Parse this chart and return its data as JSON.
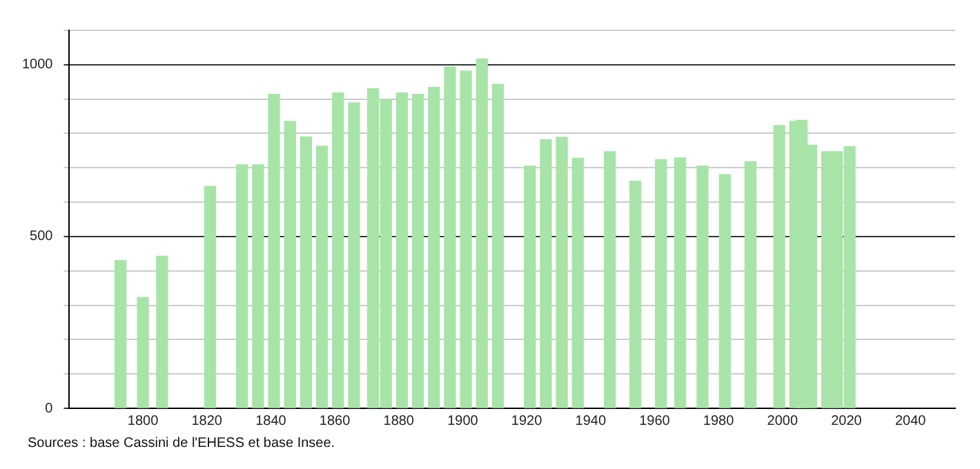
{
  "chart_data": {
    "type": "bar",
    "x": [
      1793,
      1800,
      1806,
      1821,
      1831,
      1836,
      1841,
      1846,
      1851,
      1856,
      1861,
      1866,
      1872,
      1876,
      1881,
      1886,
      1891,
      1896,
      1901,
      1906,
      1911,
      1921,
      1926,
      1931,
      1936,
      1946,
      1954,
      1962,
      1968,
      1975,
      1982,
      1990,
      1999,
      2004,
      2006,
      2009,
      2014,
      2017,
      2021
    ],
    "values": [
      430,
      323,
      443,
      646,
      709,
      709,
      914,
      835,
      790,
      763,
      918,
      889,
      930,
      898,
      918,
      914,
      934,
      994,
      982,
      1017,
      943,
      705,
      782,
      789,
      728,
      747,
      661,
      724,
      729,
      705,
      680,
      718,
      823,
      835,
      838,
      766,
      747,
      747,
      762
    ],
    "color": "#a8e4a8",
    "xlim": [
      1777,
      2054
    ],
    "xticks": [
      1800,
      1820,
      1840,
      1860,
      1880,
      1900,
      1920,
      1940,
      1960,
      1980,
      2000,
      2020,
      2040
    ],
    "ylim": [
      0,
      1100
    ],
    "yticks": [
      0,
      {
        "value": 100,
        "label": null
      },
      {
        "value": 200,
        "label": null
      },
      {
        "value": 300,
        "label": null
      },
      {
        "value": 400,
        "label": null
      },
      500,
      {
        "value": 600,
        "label": null
      },
      {
        "value": 700,
        "label": null
      },
      {
        "value": 800,
        "label": null
      },
      {
        "value": 900,
        "label": null
      },
      1000,
      {
        "value": 1100,
        "label": null
      }
    ],
    "grid": "y",
    "annotations": [
      "Sources : base Cassini de l'EHESS et base Insee."
    ]
  }
}
